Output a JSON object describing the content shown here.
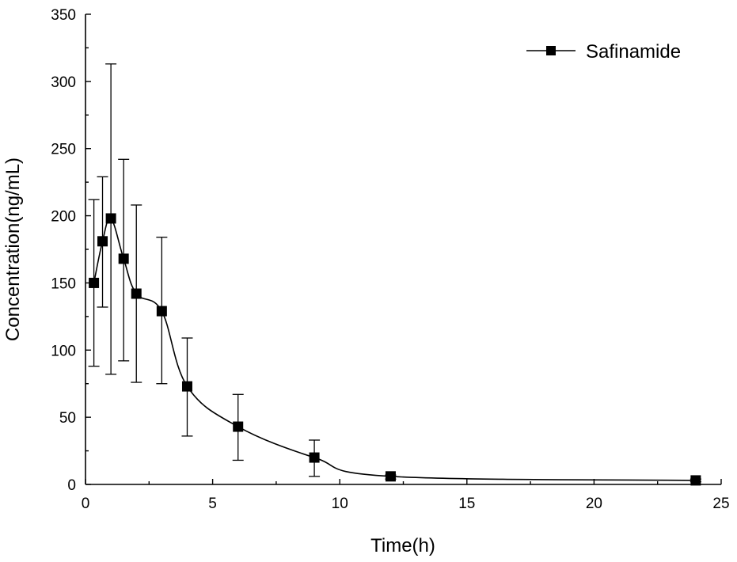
{
  "chart_data": {
    "type": "line",
    "xlabel": "Time(h)",
    "ylabel": "Concentration(ng/mL)",
    "xlim": [
      0,
      25
    ],
    "ylim": [
      0,
      350
    ],
    "x_ticks": [
      0,
      5,
      10,
      15,
      20,
      25
    ],
    "y_ticks": [
      0,
      50,
      100,
      150,
      200,
      250,
      300,
      350
    ],
    "grid": false,
    "legend_position": "top-right",
    "series": [
      {
        "name": "Safinamide",
        "marker": "square",
        "color": "#000000",
        "x": [
          0.33,
          0.67,
          1,
          1.5,
          2,
          3,
          4,
          6,
          9,
          12,
          24
        ],
        "y": [
          150,
          181,
          198,
          168,
          142,
          129,
          73,
          43,
          20,
          6,
          3
        ],
        "error_low": [
          88,
          132,
          82,
          92,
          76,
          75,
          36,
          18,
          6,
          4,
          2
        ],
        "error_high": [
          212,
          229,
          313,
          242,
          208,
          184,
          109,
          67,
          33,
          7,
          4
        ]
      }
    ]
  }
}
